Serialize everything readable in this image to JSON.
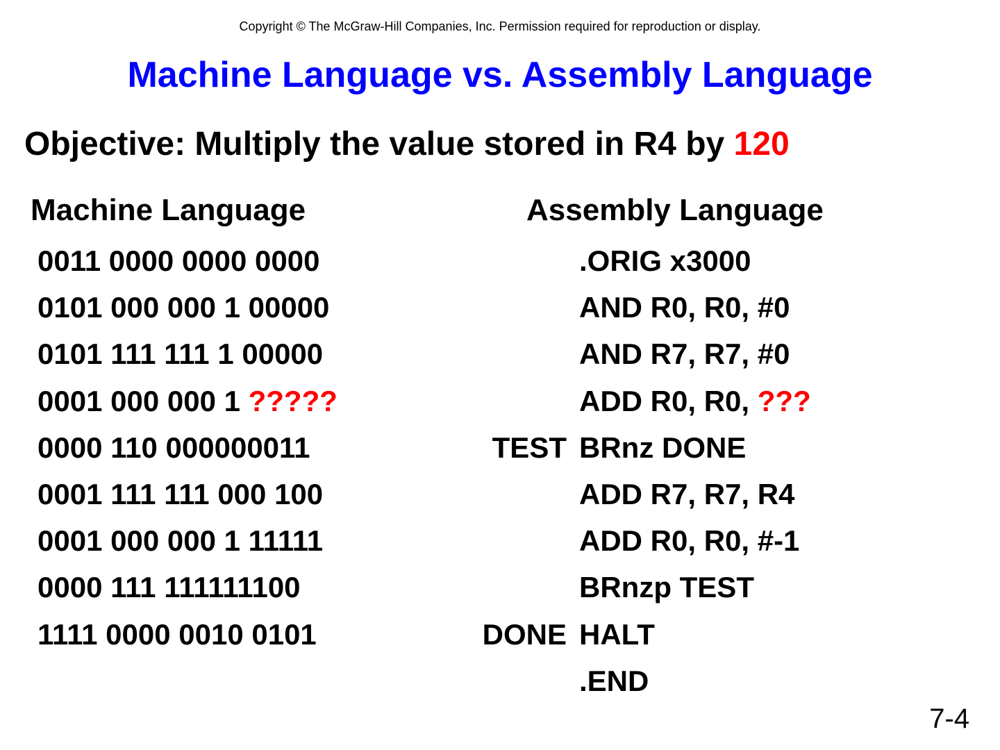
{
  "copyright": "Copyright © The McGraw-Hill Companies, Inc.  Permission required for reproduction or display.",
  "title": "Machine Language vs. Assembly Language",
  "objective": {
    "prefix": "Objective:  Multiply the value stored in R4 by ",
    "highlight": "120"
  },
  "headers": {
    "left": "Machine Language",
    "right": "Assembly Language"
  },
  "rows": [
    {
      "ml": "0011 0000 0000 0000",
      "ml_red": "",
      "label": "",
      "asm": ".ORIG x3000",
      "asm_red": ""
    },
    {
      "ml": "0101 000 000 1 00000",
      "ml_red": "",
      "label": "",
      "asm": "AND R0, R0, #0",
      "asm_red": ""
    },
    {
      "ml": "0101 111 111 1 00000",
      "ml_red": "",
      "label": "",
      "asm": "AND R7, R7, #0",
      "asm_red": ""
    },
    {
      "ml": "0001 000 000 1 ",
      "ml_red": "?????",
      "label": "",
      "asm": "ADD R0, R0, ",
      "asm_red": "???"
    },
    {
      "ml": "0000 110 000000011",
      "ml_red": "",
      "label": "TEST",
      "asm": "BRnz DONE",
      "asm_red": ""
    },
    {
      "ml": "0001 111 111 000 100",
      "ml_red": "",
      "label": "",
      "asm": "ADD R7, R7, R4",
      "asm_red": ""
    },
    {
      "ml": "0001 000 000 1 11111",
      "ml_red": "",
      "label": "",
      "asm": "ADD R0, R0, #-1",
      "asm_red": ""
    },
    {
      "ml": "0000 111 111111100",
      "ml_red": "",
      "label": "",
      "asm": "BRnzp TEST",
      "asm_red": ""
    },
    {
      "ml": "1111 0000 0010 0101",
      "ml_red": "",
      "label": "DONE",
      "asm": "HALT",
      "asm_red": ""
    },
    {
      "ml": "",
      "ml_red": "",
      "label": "",
      "asm": ".END",
      "asm_red": ""
    }
  ],
  "page_number": "7-4",
  "colors": {
    "title": "#0000ff",
    "highlight": "#ff0000",
    "text": "#000000",
    "background": "#ffffff"
  },
  "fonts": {
    "family": "Arial",
    "copyright_size_pt": 14,
    "title_size_pt": 39,
    "objective_size_pt": 36,
    "header_size_pt": 33,
    "code_size_pt": 31,
    "page_num_size_pt": 30
  }
}
